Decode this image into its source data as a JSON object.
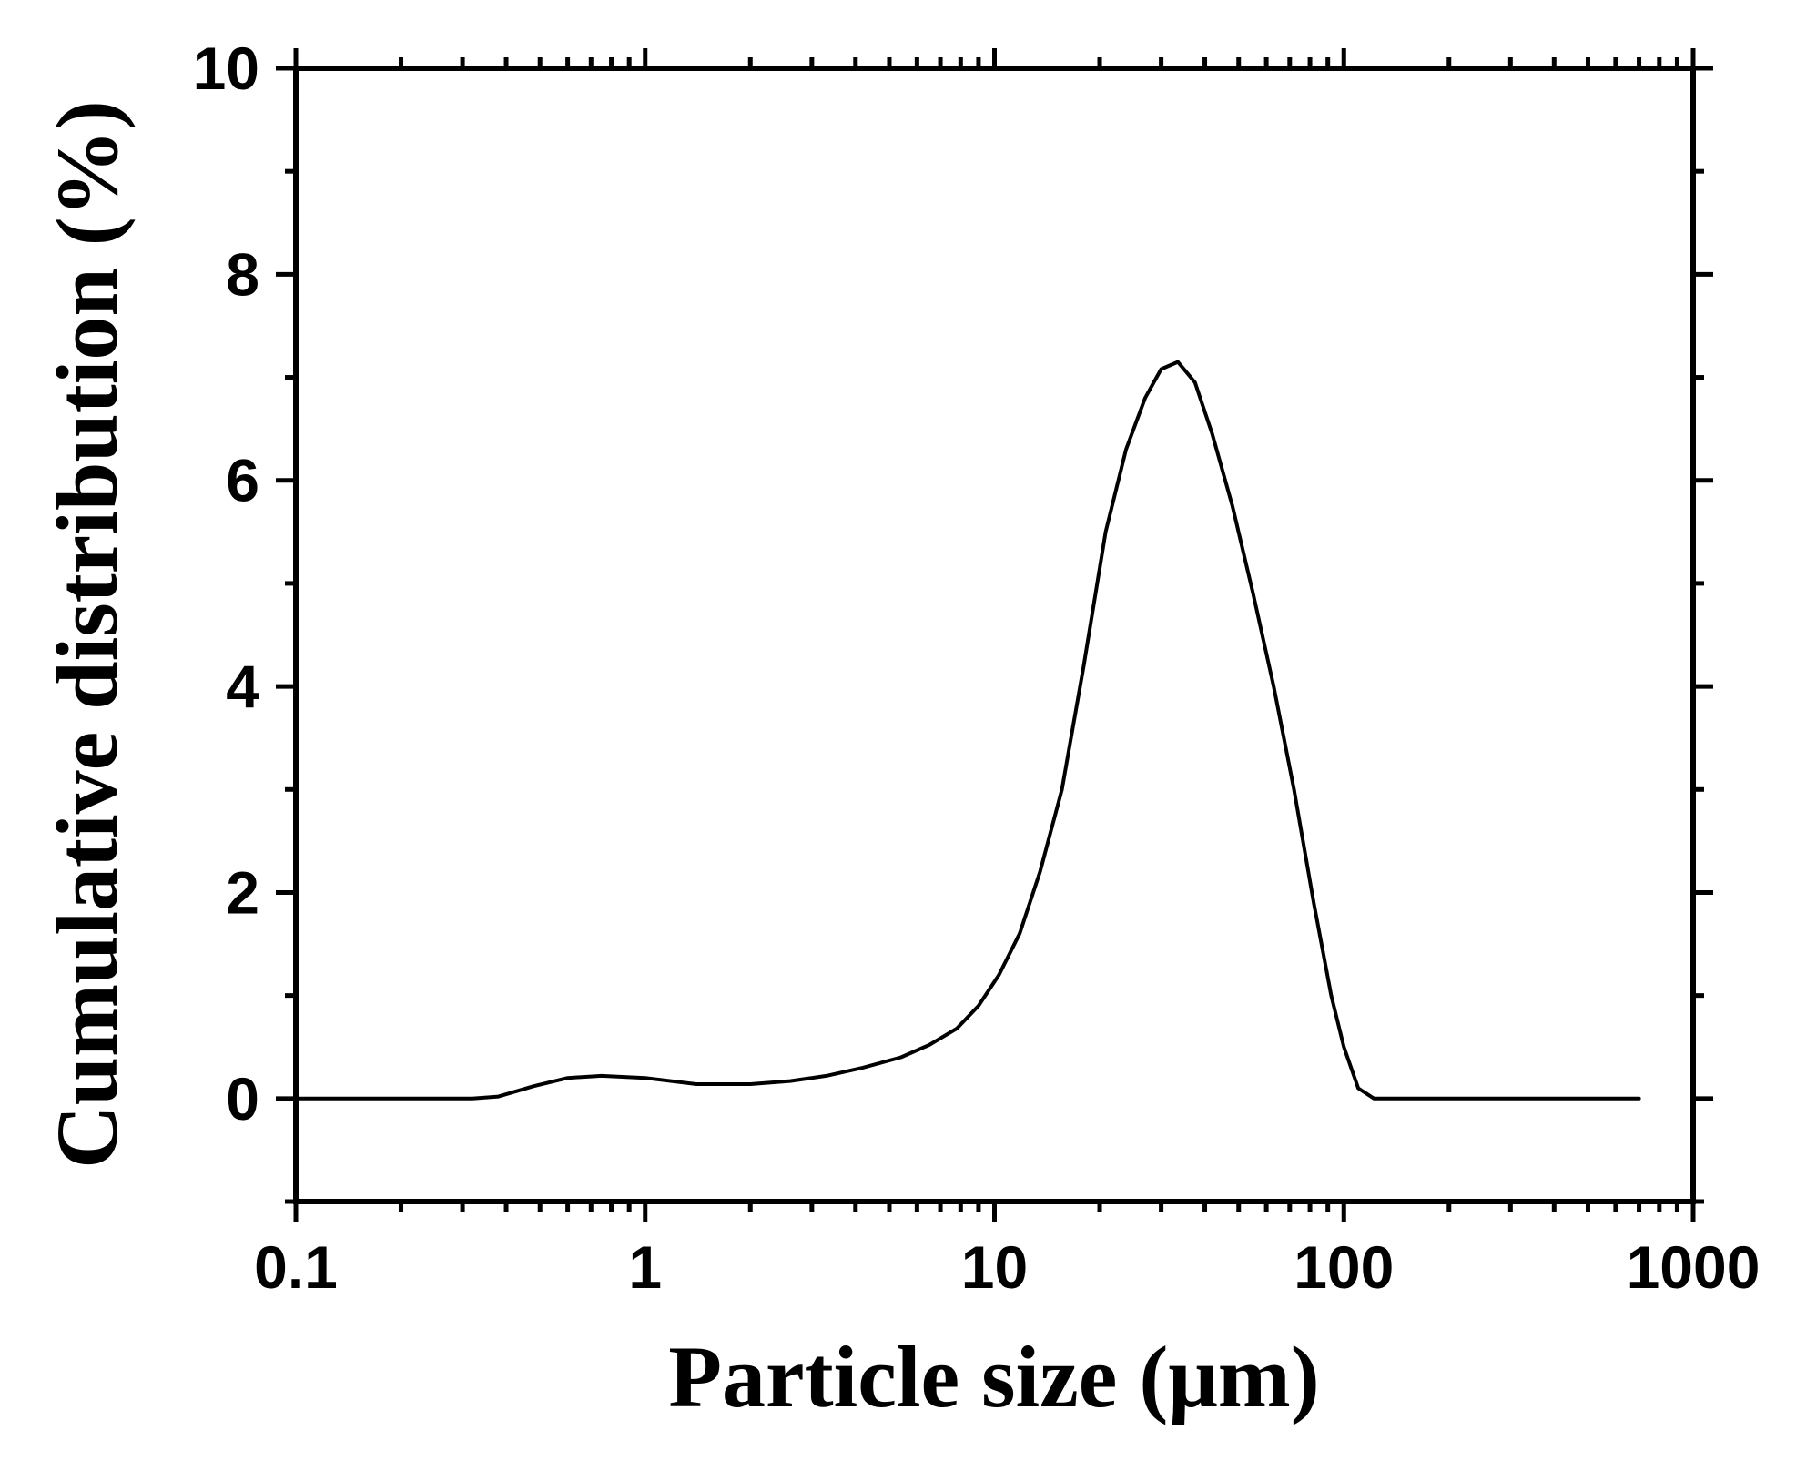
{
  "chart_data": {
    "type": "line",
    "xlabel": "Particle size (μm)",
    "ylabel": "Cumulative distribution (%)",
    "x_scale": "log",
    "xlim": [
      0.1,
      1000
    ],
    "ylim": [
      -1,
      10
    ],
    "x_ticks": [
      {
        "value": 0.1,
        "label": "0.1"
      },
      {
        "value": 1,
        "label": "1"
      },
      {
        "value": 10,
        "label": "10"
      },
      {
        "value": 100,
        "label": "100"
      },
      {
        "value": 1000,
        "label": "1000"
      }
    ],
    "y_ticks": [
      {
        "value": 0,
        "label": "0"
      },
      {
        "value": 2,
        "label": "2"
      },
      {
        "value": 4,
        "label": "4"
      },
      {
        "value": 6,
        "label": "6"
      },
      {
        "value": 8,
        "label": "8"
      },
      {
        "value": 10,
        "label": "10"
      }
    ],
    "grid": false,
    "line_color": "#000000",
    "series": [
      {
        "x": [
          0.1,
          0.2,
          0.32,
          0.38,
          0.48,
          0.6,
          0.75,
          1.0,
          1.4,
          2.0,
          2.6,
          3.3,
          4.2,
          5.4,
          6.5,
          7.8,
          9.0,
          10.3,
          11.8,
          13.5,
          15.6,
          18.0,
          20.8,
          23.8,
          27.0,
          30.0,
          33.5,
          37.5,
          42.0,
          48.0,
          55.0,
          63.0,
          72.0,
          82.0,
          92.0,
          100.0,
          110.0,
          122.0,
          140.0,
          200.0,
          400.0,
          700.0
        ],
        "y": [
          0,
          0,
          0,
          0.02,
          0.12,
          0.2,
          0.22,
          0.2,
          0.14,
          0.14,
          0.17,
          0.22,
          0.3,
          0.4,
          0.52,
          0.68,
          0.9,
          1.2,
          1.6,
          2.2,
          3.0,
          4.2,
          5.5,
          6.3,
          6.8,
          7.08,
          7.15,
          6.95,
          6.45,
          5.75,
          4.9,
          4.0,
          3.0,
          1.9,
          1.0,
          0.5,
          0.1,
          0,
          0,
          0,
          0,
          0
        ]
      }
    ]
  }
}
